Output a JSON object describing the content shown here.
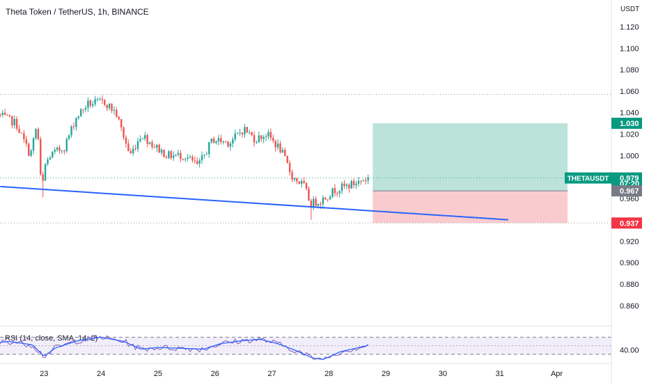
{
  "header": {
    "title": "Theta Token / TetherUS, 1h, BINANCE",
    "currency": "USDT",
    "rsi_title": "RSI (14, close, SMA, 14, 2)"
  },
  "colors": {
    "up": "#26a69a",
    "down": "#ef5350",
    "trendline": "#2962ff",
    "rsi_line": "#7e57c2",
    "rsi_ma": "#2962ff",
    "profit_zone": "#a5d9cd",
    "loss_zone": "#f9c2c5",
    "profit_tag": "#089981",
    "loss_tag": "#f23645",
    "entry_tag": "#787b86"
  },
  "chart_data": {
    "type": "candlestick",
    "price_axis": {
      "ylim": [
        0.843,
        1.132
      ],
      "ticks": [
        1.12,
        1.1,
        1.08,
        1.06,
        1.04,
        1.02,
        1.0,
        0.96,
        0.92,
        0.9,
        0.88,
        0.86
      ],
      "tick_labels": [
        "1.120",
        "1.100",
        "1.080",
        "1.060",
        "1.040",
        "1.020",
        "1.000",
        "0.960",
        "0.920",
        "0.900",
        "0.880",
        "0.860"
      ]
    },
    "time_axis": {
      "labels": [
        "23",
        "24",
        "25",
        "26",
        "27",
        "28",
        "29",
        "30",
        "31",
        "Apr"
      ],
      "day_index": [
        1,
        2,
        3,
        4,
        5,
        6,
        7,
        8,
        9,
        10
      ]
    },
    "reference_lines": [
      1.057,
      0.979,
      0.937
    ],
    "trendline": {
      "from": [
        0.23,
        0.971
      ],
      "to": [
        9.15,
        0.94
      ]
    },
    "position": {
      "entry": 0.967,
      "target": 1.03,
      "stop": 0.937,
      "from_day": 6.77,
      "to_day": 10.19
    },
    "price_tags": [
      {
        "label": "1.030",
        "value": 1.03,
        "kind": "profit"
      },
      {
        "label": "THETAUSDT",
        "value": 0.979,
        "kind": "symbol"
      },
      {
        "label": "0.979",
        "value": 0.979,
        "kind": "price"
      },
      {
        "label": "07:20",
        "value": 0.974,
        "kind": "price"
      },
      {
        "label": "0.967",
        "value": 0.967,
        "kind": "entry"
      },
      {
        "label": "0.937",
        "value": 0.937,
        "kind": "loss"
      }
    ],
    "candle_path": {
      "start_day": 0.23,
      "end_day": 6.72,
      "knots": [
        [
          0.23,
          1.038
        ],
        [
          0.55,
          1.03
        ],
        [
          0.8,
          1.0
        ],
        [
          0.92,
          1.03
        ],
        [
          1.0,
          0.963
        ],
        [
          1.05,
          0.99
        ],
        [
          1.15,
          1.0
        ],
        [
          1.4,
          1.008
        ],
        [
          1.6,
          1.035
        ],
        [
          1.8,
          1.048
        ],
        [
          2.1,
          1.05
        ],
        [
          2.3,
          1.04
        ],
        [
          2.55,
          1.0
        ],
        [
          2.75,
          1.02
        ],
        [
          2.95,
          1.01
        ],
        [
          3.2,
          1.0
        ],
        [
          3.5,
          1.0
        ],
        [
          3.75,
          0.99
        ],
        [
          4.0,
          1.015
        ],
        [
          4.3,
          1.012
        ],
        [
          4.55,
          1.025
        ],
        [
          4.75,
          1.015
        ],
        [
          4.95,
          1.02
        ],
        [
          5.2,
          1.005
        ],
        [
          5.4,
          0.98
        ],
        [
          5.6,
          0.972
        ],
        [
          5.72,
          0.955
        ],
        [
          5.9,
          0.958
        ],
        [
          6.15,
          0.968
        ],
        [
          6.45,
          0.973
        ],
        [
          6.72,
          0.979
        ]
      ],
      "spikes": [
        [
          0.98,
          0.961
        ],
        [
          5.7,
          0.94
        ],
        [
          5.88,
          0.95
        ]
      ]
    },
    "rsi": {
      "ticks": [
        40.0
      ],
      "tick_labels": [
        "40.00"
      ],
      "ylim": [
        15,
        85
      ],
      "bands": [
        70,
        30
      ],
      "mid": 50,
      "knots": [
        [
          0.0,
          55
        ],
        [
          0.4,
          60
        ],
        [
          0.8,
          52
        ],
        [
          1.0,
          25
        ],
        [
          1.2,
          45
        ],
        [
          1.6,
          62
        ],
        [
          2.0,
          70
        ],
        [
          2.4,
          60
        ],
        [
          2.7,
          42
        ],
        [
          3.0,
          46
        ],
        [
          3.4,
          44
        ],
        [
          3.8,
          42
        ],
        [
          4.1,
          55
        ],
        [
          4.5,
          62
        ],
        [
          4.8,
          65
        ],
        [
          5.1,
          55
        ],
        [
          5.4,
          40
        ],
        [
          5.7,
          22
        ],
        [
          5.9,
          18
        ],
        [
          6.2,
          36
        ],
        [
          6.5,
          45
        ],
        [
          6.72,
          52
        ]
      ]
    }
  }
}
